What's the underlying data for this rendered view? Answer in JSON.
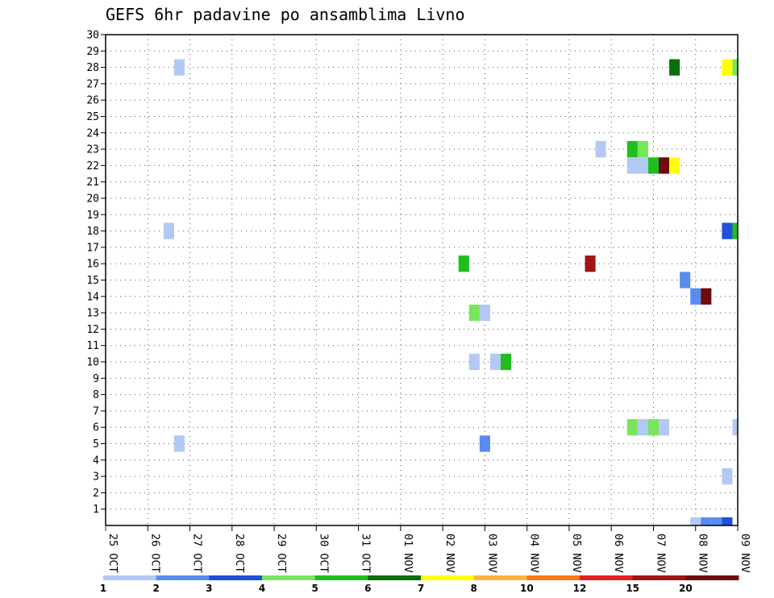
{
  "chart_data": {
    "type": "heatmap",
    "title": "GEFS 6hr padavine po ansamblima Livno",
    "xlabel": "",
    "ylabel": "",
    "x_ticks": [
      "25 OCT",
      "26 OCT",
      "27 OCT",
      "28 OCT",
      "29 OCT",
      "30 OCT",
      "31 OCT",
      "01 NOV",
      "02 NOV",
      "03 NOV",
      "04 NOV",
      "05 NOV",
      "06 NOV",
      "07 NOV",
      "08 NOV",
      "09 NOV"
    ],
    "y_ticks": [
      "1",
      "2",
      "3",
      "4",
      "5",
      "6",
      "7",
      "8",
      "9",
      "10",
      "11",
      "12",
      "13",
      "14",
      "15",
      "16",
      "17",
      "18",
      "19",
      "20",
      "21",
      "22",
      "23",
      "24",
      "25",
      "26",
      "27",
      "28",
      "29",
      "30"
    ],
    "x_range": [
      "25 OCT 00Z",
      "09 NOV 00Z"
    ],
    "y_range": [
      0,
      30
    ],
    "grid": true,
    "colorbar": {
      "labels": [
        "1",
        "2",
        "3",
        "4",
        "5",
        "6",
        "7",
        "8",
        "10",
        "12",
        "15",
        "20"
      ],
      "colors": [
        "#b4c8f5",
        "#5a8cf0",
        "#1e50dc",
        "#78e65a",
        "#1ebe1e",
        "#0a6e0a",
        "#ffff00",
        "#ffb43c",
        "#ff7814",
        "#e61e1e",
        "#a01414",
        "#6e0a0a"
      ]
    },
    "cells": [
      {
        "member": 28,
        "time": "26 OCT 18Z",
        "value": 1
      },
      {
        "member": 5,
        "time": "26 OCT 18Z",
        "value": 1
      },
      {
        "member": 18,
        "time": "26 OCT 12Z",
        "value": 1
      },
      {
        "member": 16,
        "time": "02 NOV 12Z",
        "value": 5
      },
      {
        "member": 13,
        "time": "02 NOV 18Z",
        "value": 4
      },
      {
        "member": 13,
        "time": "03 NOV 00Z",
        "value": 1
      },
      {
        "member": 10,
        "time": "02 NOV 18Z",
        "value": 1
      },
      {
        "member": 10,
        "time": "03 NOV 06Z",
        "value": 1
      },
      {
        "member": 10,
        "time": "03 NOV 12Z",
        "value": 5
      },
      {
        "member": 5,
        "time": "03 NOV 00Z",
        "value": 2
      },
      {
        "member": 16,
        "time": "05 NOV 12Z",
        "value": 15
      },
      {
        "member": 23,
        "time": "05 NOV 18Z",
        "value": 1
      },
      {
        "member": 23,
        "time": "06 NOV 12Z",
        "value": 5
      },
      {
        "member": 23,
        "time": "06 NOV 18Z",
        "value": 4
      },
      {
        "member": 22,
        "time": "06 NOV 12Z",
        "value": 1
      },
      {
        "member": 22,
        "time": "06 NOV 18Z",
        "value": 1
      },
      {
        "member": 22,
        "time": "07 NOV 00Z",
        "value": 5
      },
      {
        "member": 22,
        "time": "07 NOV 06Z",
        "value": 20
      },
      {
        "member": 22,
        "time": "07 NOV 12Z",
        "value": 7
      },
      {
        "member": 6,
        "time": "06 NOV 12Z",
        "value": 4
      },
      {
        "member": 6,
        "time": "06 NOV 18Z",
        "value": 1
      },
      {
        "member": 6,
        "time": "07 NOV 00Z",
        "value": 4
      },
      {
        "member": 6,
        "time": "07 NOV 06Z",
        "value": 1
      },
      {
        "member": 28,
        "time": "07 NOV 12Z",
        "value": 6
      },
      {
        "member": 15,
        "time": "07 NOV 18Z",
        "value": 2
      },
      {
        "member": 14,
        "time": "08 NOV 00Z",
        "value": 2
      },
      {
        "member": 14,
        "time": "08 NOV 06Z",
        "value": 20
      },
      {
        "member": 28,
        "time": "08 NOV 18Z",
        "value": 7
      },
      {
        "member": 28,
        "time": "09 NOV 00Z",
        "value": 4
      },
      {
        "member": 18,
        "time": "08 NOV 18Z",
        "value": 3
      },
      {
        "member": 18,
        "time": "09 NOV 00Z",
        "value": 5
      },
      {
        "member": 6,
        "time": "09 NOV 00Z",
        "value": 1
      },
      {
        "member": 3,
        "time": "08 NOV 18Z",
        "value": 1
      },
      {
        "member": 0,
        "time": "08 NOV 00Z",
        "value": 1
      },
      {
        "member": 0,
        "time": "08 NOV 06Z",
        "value": 2
      },
      {
        "member": 0,
        "time": "08 NOV 12Z",
        "value": 2
      },
      {
        "member": 0,
        "time": "08 NOV 18Z",
        "value": 3
      }
    ]
  }
}
